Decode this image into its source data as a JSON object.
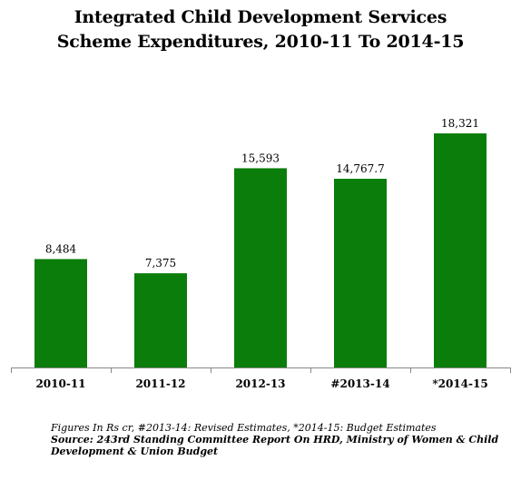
{
  "chart_data": {
    "type": "bar",
    "title_lines": [
      "Integrated Child Development Services",
      "Scheme Expenditures, 2010-11 To 2014-15"
    ],
    "categories": [
      "2010-11",
      "2011-12",
      "2012-13",
      "#2013-14",
      "*2014-15"
    ],
    "values": [
      8484,
      7375,
      15593,
      14767.7,
      18321
    ],
    "data_labels": [
      "8,484",
      "7,375",
      "15,593",
      "14,767.7",
      "18,321"
    ],
    "xlabel": "",
    "ylabel": "",
    "ylim": [
      0,
      22000
    ],
    "grid": false,
    "legend": "none",
    "bar_color": "#0a7d0a",
    "note": "Figures In Rs cr, #2013-14: Revised Estimates, *2014-15: Budget Estimates",
    "source": "Source:  243rd Standing Committee  Report On HRD, Ministry of Women & Child Development & Union Budget"
  }
}
